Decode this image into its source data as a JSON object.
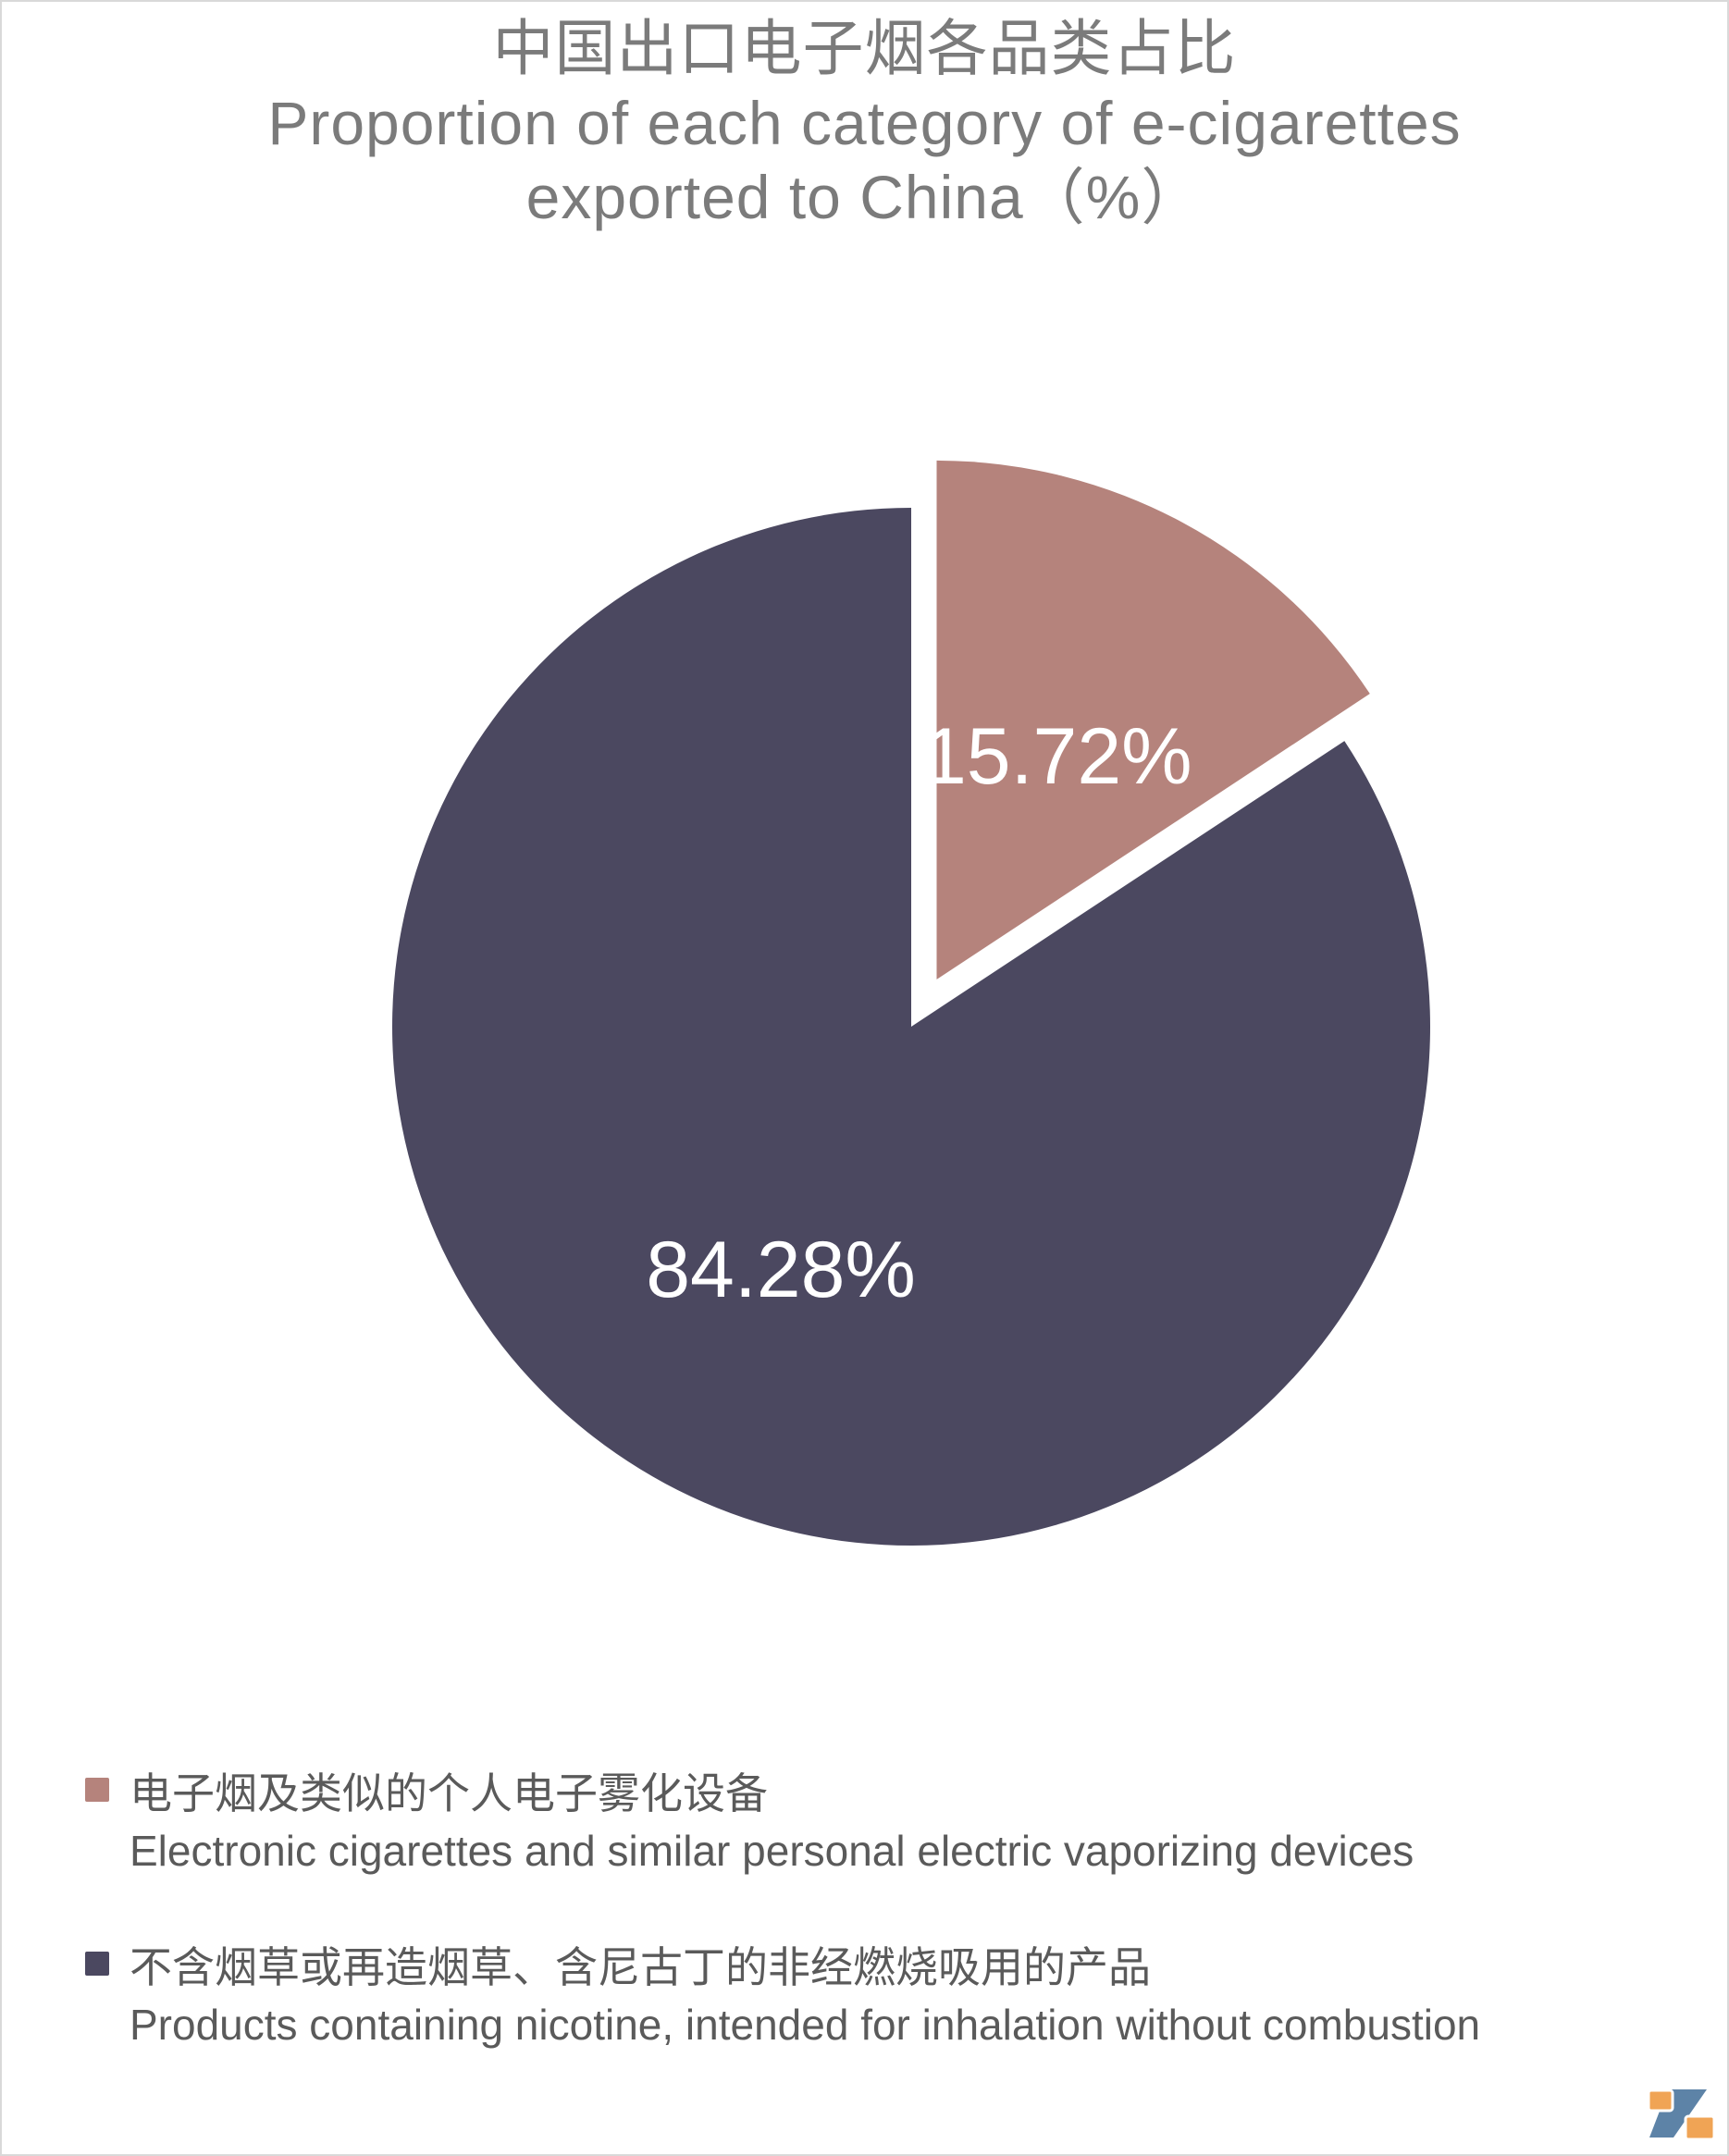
{
  "page": {
    "background": "#ffffff",
    "border_color": "#d9d9d9"
  },
  "title": {
    "line1_zh": "中国出口电子烟各品类占比",
    "line2_en": "Proportion of each category of e-cigarettes",
    "line3_en": "exported to China（%）",
    "color": "#7b7b7b"
  },
  "chart_data": {
    "type": "pie",
    "title_zh": "中国出口电子烟各品类占比",
    "title_en": "Proportion of each category of e-cigarettes exported to China（%）",
    "unit": "%",
    "start_angle_deg": 90,
    "direction": "clockwise",
    "legend_position": "bottom-left",
    "label_color": "#ffffff",
    "slices": [
      {
        "name_zh": "电子烟及类似的个人电子雾化设备",
        "name_en": "Electronic cigarettes and similar personal electric vaporizing devices",
        "value": 15.72,
        "data_label": "15.72%",
        "color": "#b5837c",
        "exploded": true
      },
      {
        "name_zh": "不含烟草或再造烟草、含尼古丁的非经燃烧吸用的产品",
        "name_en": "Products containing nicotine, intended for inhalation without combustion",
        "value": 84.28,
        "data_label": "84.28%",
        "color": "#4b4860",
        "exploded": false
      }
    ]
  },
  "legend": {
    "items": [
      {
        "label_zh": "电子烟及类似的个人电子雾化设备",
        "label_en": "Electronic cigarettes and similar personal electric vaporizing devices",
        "color": "#b5837c"
      },
      {
        "label_zh": "不含烟草或再造烟草、含尼古丁的非经燃烧吸用的产品",
        "label_en": "Products containing nicotine, intended for inhalation without combustion",
        "color": "#4b4860"
      }
    ]
  },
  "logo": {
    "name": "zhiyan-logo",
    "orange": "#f0a455",
    "blue": "#5d83a7"
  }
}
